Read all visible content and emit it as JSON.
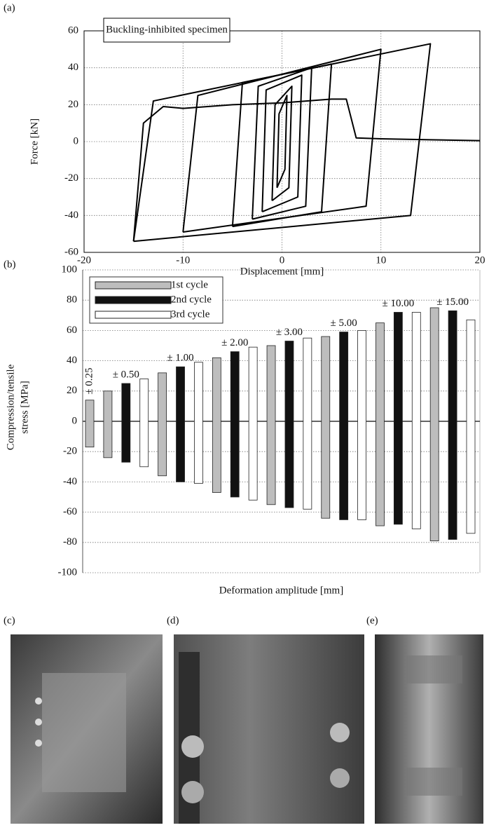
{
  "chart_data": [
    {
      "type": "line",
      "panel": "(a)",
      "annotation": "Buckling-inhibited specimen",
      "xlabel": "Displacement [mm]",
      "ylabel": "Force [kN]",
      "xlim": [
        -20,
        20
      ],
      "xticks": [
        -20,
        -10,
        0,
        10,
        20
      ],
      "ylim": [
        -60,
        60
      ],
      "yticks": [
        -60,
        -40,
        -20,
        0,
        20,
        40,
        60
      ],
      "grid": true,
      "series": [
        {
          "color": "#000000",
          "x": [
            -0.5,
            -0.3,
            0.5,
            0.3,
            -0.5
          ],
          "values": [
            -25,
            15,
            25,
            -15,
            -25
          ]
        },
        {
          "color": "#000000",
          "x": [
            -1,
            -0.7,
            1,
            0.7,
            -1
          ],
          "values": [
            -32,
            20,
            30,
            -25,
            -32
          ]
        },
        {
          "color": "#000000",
          "x": [
            -2,
            -1.6,
            2,
            1.6,
            -2
          ],
          "values": [
            -38,
            28,
            36,
            -30,
            -38
          ]
        },
        {
          "color": "#000000",
          "x": [
            -3,
            -2.4,
            3,
            2.4,
            -3
          ],
          "values": [
            -42,
            30,
            40,
            -35,
            -42
          ]
        },
        {
          "color": "#000000",
          "x": [
            -5,
            -4,
            5,
            4,
            -5
          ],
          "values": [
            -46,
            32,
            42,
            -38,
            -46
          ]
        },
        {
          "color": "#000000",
          "x": [
            -10,
            -8.5,
            10,
            8.5,
            -10
          ],
          "values": [
            -49,
            25,
            50,
            -35,
            -49
          ]
        },
        {
          "color": "#000000",
          "x": [
            -15,
            -13,
            15,
            13,
            -15
          ],
          "values": [
            -54,
            22,
            53,
            -40,
            -54
          ]
        },
        {
          "color": "#000000",
          "x": [
            -15,
            -14,
            -12,
            -10,
            -5,
            0,
            5,
            6.5,
            7.5,
            10,
            15,
            20
          ],
          "values": [
            -54,
            10,
            19,
            18,
            20,
            21,
            23,
            23,
            2,
            1.5,
            1,
            0.5
          ]
        }
      ]
    },
    {
      "type": "bar",
      "panel": "(b)",
      "xlabel": "Deformation amplitude [mm]",
      "ylabel": [
        "Compression/tensile",
        "stress [MPa]"
      ],
      "ylim": [
        -100,
        100
      ],
      "yticks": [
        -100,
        -80,
        -60,
        -40,
        -20,
        0,
        20,
        40,
        60,
        80,
        100
      ],
      "grid": true,
      "legend": "upper left",
      "categories": [
        null,
        null,
        null,
        null,
        null,
        null,
        null,
        null,
        null,
        null,
        null,
        null,
        null,
        null,
        null,
        null,
        null,
        null,
        null,
        null,
        null,
        null
      ],
      "series": [
        {
          "name": "1st cycle",
          "color": "#bdbdbd",
          "values": [
            14,
            20,
            null,
            null,
            32,
            null,
            null,
            42,
            null,
            null,
            50,
            null,
            null,
            56,
            null,
            null,
            65,
            null,
            null,
            75,
            null,
            null
          ],
          "compression": [
            -17,
            -24,
            null,
            null,
            -36,
            null,
            null,
            -47,
            null,
            null,
            -55,
            null,
            null,
            -64,
            null,
            null,
            -69,
            null,
            null,
            -79,
            null,
            null
          ]
        },
        {
          "name": "2nd cycle",
          "color": "#111111",
          "values": [
            null,
            null,
            25,
            null,
            null,
            36,
            null,
            null,
            46,
            null,
            null,
            53,
            null,
            null,
            59,
            null,
            null,
            72,
            null,
            null,
            73,
            null
          ],
          "compression": [
            null,
            null,
            -27,
            null,
            null,
            -40,
            null,
            null,
            -50,
            null,
            null,
            -57,
            null,
            null,
            -65,
            null,
            null,
            -68,
            null,
            null,
            -78,
            null
          ]
        },
        {
          "name": "3rd cycle",
          "color": "#ffffff",
          "values": [
            null,
            null,
            null,
            28,
            null,
            null,
            39,
            null,
            null,
            49,
            null,
            null,
            55,
            null,
            null,
            60,
            null,
            null,
            72,
            null,
            null,
            67
          ],
          "compression": [
            null,
            null,
            null,
            -30,
            null,
            null,
            -41,
            null,
            null,
            -52,
            null,
            null,
            -58,
            null,
            null,
            -65,
            null,
            null,
            -71,
            null,
            null,
            -74
          ]
        }
      ],
      "annotations": [
        "± 0.25",
        "± 0.50",
        "± 1.00",
        "± 2.00",
        "± 3.00",
        "± 5.00",
        "± 10.00",
        "± 15.00"
      ]
    }
  ],
  "photos": [
    "(c)",
    "(d)",
    "(e)"
  ]
}
